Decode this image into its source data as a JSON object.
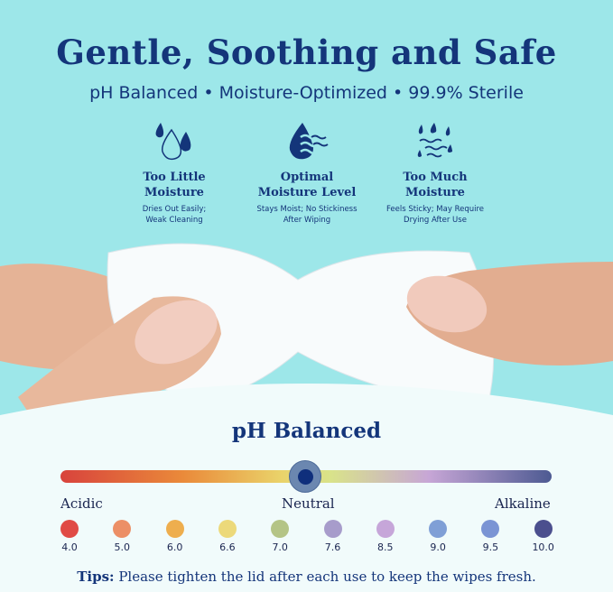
{
  "header": {
    "title": "Gentle, Soothing and Safe",
    "subtitle": "pH Balanced • Moisture-Optimized • 99.9% Sterile"
  },
  "moisture": [
    {
      "icon": "water-drops-icon",
      "title1": "Too Little",
      "title2": "Moisture",
      "desc1": "Dries Out Easily;",
      "desc2": "Weak Cleaning"
    },
    {
      "icon": "drop-waves-icon",
      "title1": "Optimal",
      "title2": "Moisture Level",
      "desc1": "Stays Moist; No Stickiness",
      "desc2": "After Wiping"
    },
    {
      "icon": "rain-waves-icon",
      "title1": "Too Much",
      "title2": "Moisture",
      "desc1": "Feels Sticky; May Require",
      "desc2": "Drying After Use"
    }
  ],
  "ph": {
    "title": "pH Balanced",
    "acidic": "Acidic",
    "neutral": "Neutral",
    "alkaline": "Alkaline",
    "current": 7.0,
    "scale": [
      {
        "value": "4.0",
        "color": "#e04a45"
      },
      {
        "value": "5.0",
        "color": "#ec8f66"
      },
      {
        "value": "6.0",
        "color": "#eeae4e"
      },
      {
        "value": "6.6",
        "color": "#ecd97a"
      },
      {
        "value": "7.0",
        "color": "#b4c486"
      },
      {
        "value": "7.6",
        "color": "#a79ccb"
      },
      {
        "value": "8.5",
        "color": "#c6a6d9"
      },
      {
        "value": "9.0",
        "color": "#7f9fd6"
      },
      {
        "value": "9.5",
        "color": "#7a94d4"
      },
      {
        "value": "10.0",
        "color": "#4b4f8e"
      }
    ]
  },
  "tips": {
    "label": "Tips:",
    "text": " Please tighten the lid after each use to keep the wipes fresh."
  },
  "colors": {
    "brand": "#14357a",
    "background": "#9de7e9"
  }
}
